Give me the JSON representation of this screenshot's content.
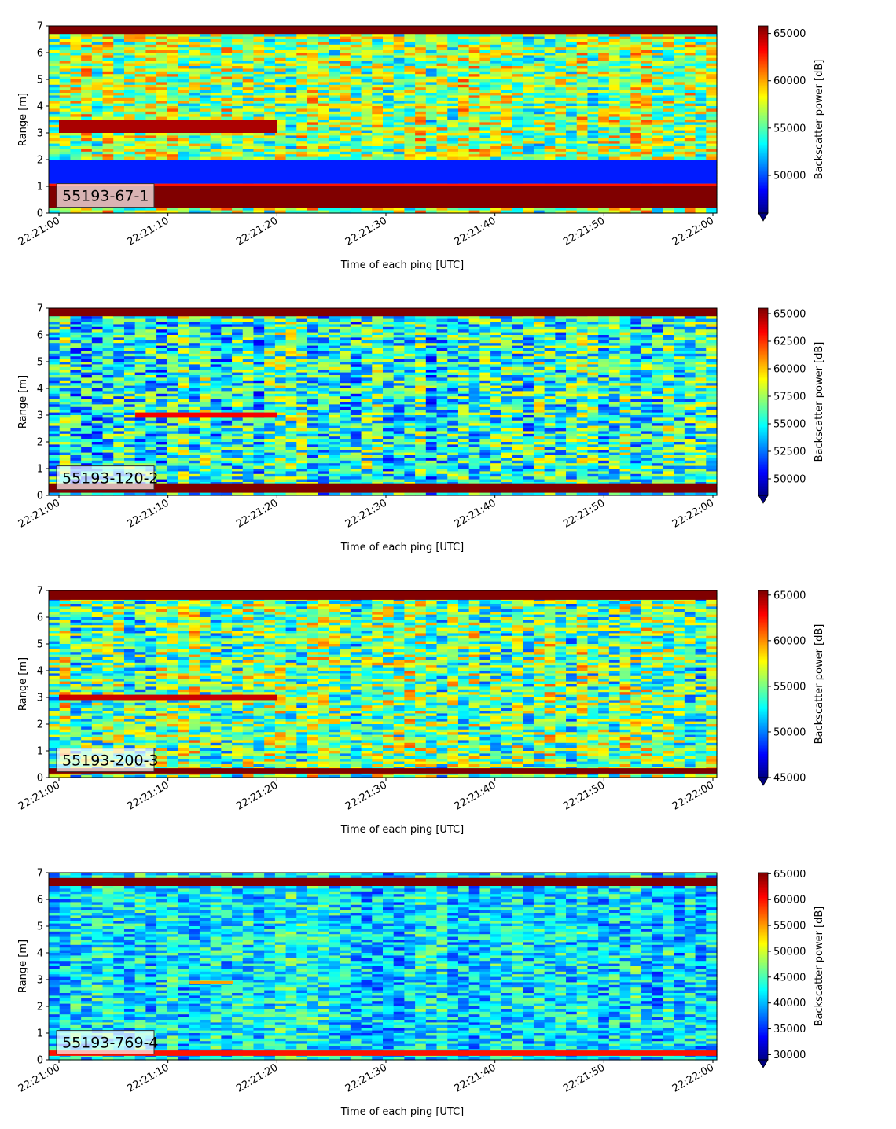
{
  "chart_data": [
    {
      "type": "heatmap",
      "label": "55193-67-1",
      "xlabel": "Time of each ping [UTC]",
      "ylabel": "Range [m]",
      "x_ticks": [
        "22:21:00",
        "22:21:10",
        "22:21:20",
        "22:21:30",
        "22:21:40",
        "22:21:50",
        "22:22:00"
      ],
      "xlim": [
        "22:21:00",
        "22:22:00"
      ],
      "y_ticks": [
        0,
        1,
        2,
        3,
        4,
        5,
        6,
        7
      ],
      "ylim": [
        0,
        7
      ],
      "colormap": "jet",
      "colorbar": {
        "label": "Backscatter power [dB]",
        "range": [
          46000,
          65800
        ],
        "ticks": [
          50000,
          55000,
          60000,
          65000
        ],
        "tick_labels": [
          "50000",
          "55000",
          "60000",
          "65000"
        ],
        "extend": "min"
      },
      "bands": [
        {
          "y": [
            0.2,
            1.0
          ],
          "value": 65800
        },
        {
          "y": [
            1.0,
            1.1
          ],
          "value": 63000
        },
        {
          "y": [
            1.1,
            2.0
          ],
          "value": 49000
        },
        {
          "y": [
            3.0,
            3.5
          ],
          "value": 65000,
          "x": [
            "22:21:00",
            "22:21:20"
          ]
        },
        {
          "y": [
            6.7,
            7.0
          ],
          "value": 65800
        }
      ],
      "field_mean": 56500,
      "field_spread": 4500,
      "seed": 11
    },
    {
      "type": "heatmap",
      "label": "55193-120-2",
      "xlabel": "Time of each ping [UTC]",
      "ylabel": "Range [m]",
      "x_ticks": [
        "22:21:00",
        "22:21:10",
        "22:21:20",
        "22:21:30",
        "22:21:40",
        "22:21:50",
        "22:22:00"
      ],
      "xlim": [
        "22:21:00",
        "22:22:00"
      ],
      "y_ticks": [
        0,
        1,
        2,
        3,
        4,
        5,
        6,
        7
      ],
      "ylim": [
        0,
        7
      ],
      "colormap": "jet",
      "colorbar": {
        "label": "Backscatter power [dB]",
        "range": [
          48500,
          65500
        ],
        "ticks": [
          50000,
          52500,
          55000,
          57500,
          60000,
          62500,
          65000
        ],
        "tick_labels": [
          "50000",
          "52500",
          "55000",
          "57500",
          "60000",
          "62500",
          "65000"
        ],
        "extend": "min"
      },
      "bands": [
        {
          "y": [
            0.1,
            0.45
          ],
          "value": 65500
        },
        {
          "y": [
            2.9,
            3.1
          ],
          "value": 63500,
          "x": [
            "22:21:07",
            "22:21:20"
          ]
        },
        {
          "y": [
            6.7,
            7.0
          ],
          "value": 65500
        }
      ],
      "field_mean": 55500,
      "field_spread": 4000,
      "seed": 23
    },
    {
      "type": "heatmap",
      "label": "55193-200-3",
      "xlabel": "Time of each ping [UTC]",
      "ylabel": "Range [m]",
      "x_ticks": [
        "22:21:00",
        "22:21:10",
        "22:21:20",
        "22:21:30",
        "22:21:40",
        "22:21:50",
        "22:22:00"
      ],
      "xlim": [
        "22:21:00",
        "22:22:00"
      ],
      "y_ticks": [
        0,
        1,
        2,
        3,
        4,
        5,
        6,
        7
      ],
      "ylim": [
        0,
        7
      ],
      "colormap": "jet",
      "colorbar": {
        "label": "Backscatter power [dB]",
        "range": [
          45000,
          65500
        ],
        "ticks": [
          45000,
          50000,
          55000,
          60000,
          65000
        ],
        "tick_labels": [
          "45000",
          "50000",
          "55000",
          "60000",
          "65000"
        ],
        "extend": "min"
      },
      "bands": [
        {
          "y": [
            0.15,
            0.35
          ],
          "value": 65500
        },
        {
          "y": [
            2.9,
            3.1
          ],
          "value": 64000,
          "x": [
            "22:21:00",
            "22:21:20"
          ]
        },
        {
          "y": [
            6.65,
            7.0
          ],
          "value": 65500
        }
      ],
      "field_mean": 55000,
      "field_spread": 5000,
      "seed": 37
    },
    {
      "type": "heatmap",
      "label": "55193-769-4",
      "xlabel": "Time of each ping [UTC]",
      "ylabel": "Range [m]",
      "x_ticks": [
        "22:21:00",
        "22:21:10",
        "22:21:20",
        "22:21:30",
        "22:21:40",
        "22:21:50",
        "22:22:00"
      ],
      "xlim": [
        "22:21:00",
        "22:22:00"
      ],
      "y_ticks": [
        0,
        1,
        2,
        3,
        4,
        5,
        6,
        7
      ],
      "ylim": [
        0,
        7
      ],
      "colormap": "jet",
      "colorbar": {
        "label": "Backscatter power [dB]",
        "range": [
          29000,
          65200
        ],
        "ticks": [
          30000,
          35000,
          40000,
          45000,
          50000,
          55000,
          60000,
          65000
        ],
        "tick_labels": [
          "30000",
          "35000",
          "40000",
          "45000",
          "50000",
          "55000",
          "60000",
          "65000"
        ],
        "extend": "min"
      },
      "bands": [
        {
          "y": [
            0.15,
            0.35
          ],
          "value": 60000
        },
        {
          "y": [
            2.85,
            2.95
          ],
          "value": 55000,
          "x": [
            "22:21:12",
            "22:21:16"
          ]
        },
        {
          "y": [
            6.5,
            6.8
          ],
          "value": 65000
        }
      ],
      "field_mean": 42000,
      "field_spread": 6000,
      "seed": 53
    }
  ]
}
